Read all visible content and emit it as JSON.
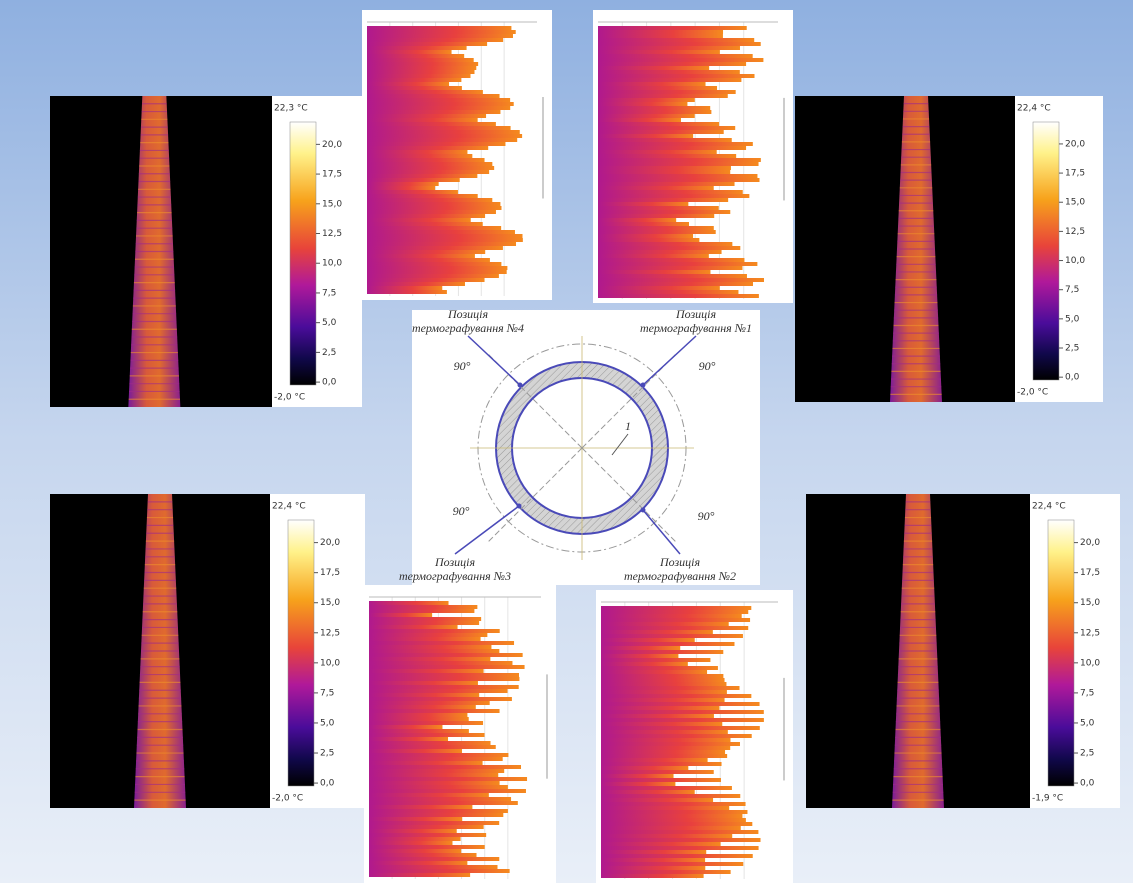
{
  "thermograms": [
    {
      "max": "22,3 °C",
      "min": "-2,0 °C",
      "ticks": [
        "20,0",
        "17,5",
        "15,0",
        "12,5",
        "10,0",
        "7,5",
        "5,0",
        "2,5",
        "0,0"
      ]
    },
    {
      "max": "22,4 °C",
      "min": "-2,0 °C",
      "ticks": [
        "20,0",
        "17,5",
        "15,0",
        "12,5",
        "10,0",
        "7,5",
        "5,0",
        "2,5",
        "0,0"
      ]
    },
    {
      "max": "22,4 °C",
      "min": "-2,0 °C",
      "ticks": [
        "20,0",
        "17,5",
        "15,0",
        "12,5",
        "10,0",
        "7,5",
        "5,0",
        "2,5",
        "0,0"
      ]
    },
    {
      "max": "22,4 °C",
      "min": "-1,9 °C",
      "ticks": [
        "20,0",
        "17,5",
        "15,0",
        "12,5",
        "10,0",
        "7,5",
        "5,0",
        "2,5",
        "0,0"
      ]
    }
  ],
  "diagram": {
    "positions": [
      {
        "line1": "Позиція",
        "line2": "термографування №4"
      },
      {
        "line1": "Позиція",
        "line2": "термографування №1"
      },
      {
        "line1": "Позиція",
        "line2": "термографування №3"
      },
      {
        "line1": "Позиція",
        "line2": "термографування №2"
      }
    ],
    "angles": [
      "90°",
      "90°",
      "90°",
      "90°"
    ],
    "marker": "1"
  }
}
